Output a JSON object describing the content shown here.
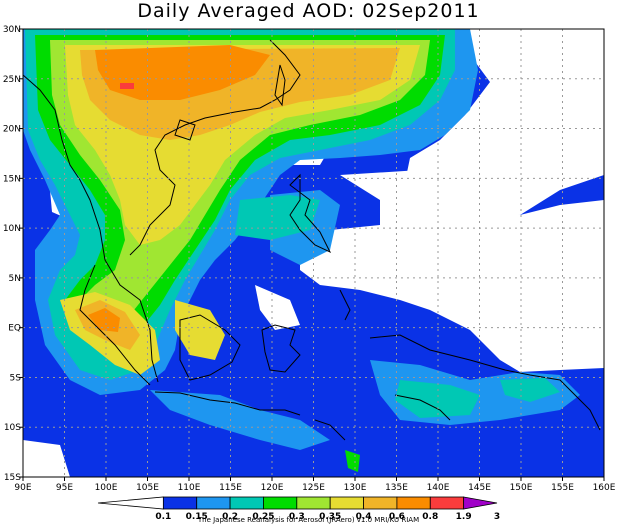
{
  "title": "Daily Averaged AOD: 02Sep2011",
  "credit": "The Japanese Reanalysis for Aerosol (JRAero) v1.0 MRI/KU RIAM",
  "map": {
    "lon_range": [
      90,
      160
    ],
    "lat_range": [
      -15,
      30
    ],
    "lon_ticks": [
      "90E",
      "95E",
      "100E",
      "105E",
      "110E",
      "115E",
      "120E",
      "125E",
      "130E",
      "135E",
      "140E",
      "145E",
      "150E",
      "155E",
      "160E"
    ],
    "lat_ticks": [
      "30N",
      "25N",
      "20N",
      "15N",
      "10N",
      "5N",
      "EQ",
      "5S",
      "10S",
      "15S"
    ],
    "grid": true
  },
  "colorbar": {
    "labels": [
      "0.1",
      "0.15",
      "0.2",
      "0.25",
      "0.3",
      "0.35",
      "0.4",
      "0.6",
      "0.8",
      "1.9",
      "3"
    ],
    "colors": [
      "#ffffff",
      "#0a32e6",
      "#1e96f0",
      "#00c8b4",
      "#00dc00",
      "#a0e632",
      "#e6dc32",
      "#f0b428",
      "#fa8c00",
      "#fa3c3c",
      "#a000c8"
    ]
  }
}
